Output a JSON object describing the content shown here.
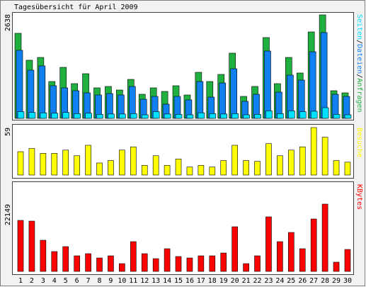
{
  "chart_data": [
    {
      "type": "bar",
      "title": "Tagesübersicht für April 2009",
      "ylim": [
        0,
        2638
      ],
      "yticks": [
        2638
      ],
      "legend_separator": "/",
      "series": [
        {
          "name": "Seiten",
          "color": "#00e0ff",
          "values": [
            170,
            150,
            140,
            130,
            150,
            120,
            130,
            100,
            110,
            110,
            120,
            90,
            170,
            110,
            100,
            90,
            140,
            120,
            110,
            120,
            90,
            100,
            190,
            120,
            190,
            170,
            180,
            270,
            100,
            90
          ]
        },
        {
          "name": "Dateien",
          "color": "#1080f0",
          "values": [
            1723,
            1220,
            1328,
            826,
            772,
            700,
            646,
            592,
            628,
            592,
            808,
            485,
            556,
            359,
            556,
            467,
            933,
            538,
            897,
            1256,
            431,
            610,
            1705,
            664,
            1095,
            969,
            1687,
            2172,
            610,
            556
          ]
        },
        {
          "name": "Anfragen",
          "color": "#20b040",
          "values": [
            2154,
            1472,
            1543,
            933,
            1292,
            879,
            1131,
            772,
            808,
            718,
            987,
            610,
            772,
            682,
            826,
            592,
            1166,
            933,
            1113,
            1651,
            556,
            808,
            2046,
            879,
            1543,
            1149,
            2189,
            2620,
            700,
            646
          ]
        }
      ]
    },
    {
      "type": "bar",
      "ylim": [
        0,
        59
      ],
      "yticks": [
        59
      ],
      "series": [
        {
          "name": "Besuche",
          "color": "#ffff00",
          "values": [
            29,
            33,
            27,
            27,
            31,
            24,
            37,
            15,
            18,
            31,
            35,
            12,
            24,
            12,
            20,
            10,
            12,
            10,
            18,
            37,
            18,
            17,
            39,
            24,
            31,
            35,
            59,
            47,
            18,
            16
          ]
        }
      ]
    },
    {
      "type": "bar",
      "ylim": [
        0,
        22149
      ],
      "yticks": [
        22149
      ],
      "series": [
        {
          "name": "KBytes",
          "color": "#ff0000",
          "values": [
            16787,
            16553,
            10259,
            6528,
            8160,
            5129,
            5829,
            4430,
            5129,
            2565,
            9792,
            5829,
            4197,
            7461,
            4896,
            4430,
            5129,
            5129,
            6062,
            14688,
            2565,
            5129,
            17952,
            9792,
            12823,
            7461,
            17253,
            22149,
            3031,
            7228
          ]
        }
      ],
      "categories": [
        "1",
        "2",
        "3",
        "4",
        "5",
        "6",
        "7",
        "8",
        "9",
        "10",
        "11",
        "12",
        "13",
        "14",
        "15",
        "16",
        "17",
        "18",
        "19",
        "20",
        "21",
        "22",
        "23",
        "24",
        "25",
        "26",
        "27",
        "28",
        "29",
        "30"
      ],
      "highlight_categories": [
        "4",
        "5",
        "11",
        "12",
        "18",
        "19",
        "25",
        "26"
      ],
      "highlight_color": "#00a000"
    }
  ]
}
